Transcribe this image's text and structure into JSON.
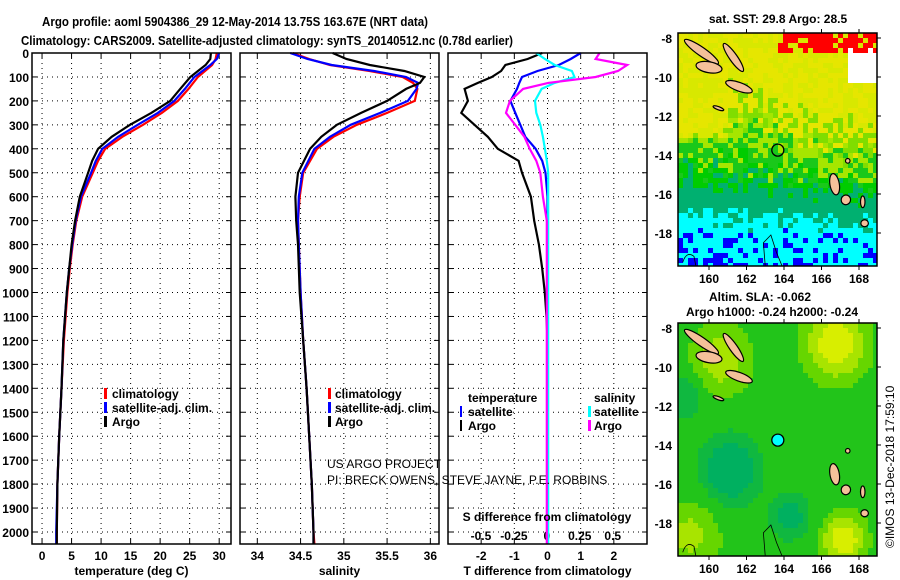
{
  "title": {
    "line1": "Argo profile: aoml 5904386_29 12-May-2014 13.75S 163.67E (NRT data)",
    "line2": "Climatology: CARS2009. Satellite-adjusted climatology: synTS_20140512.nc (0.78d earlier)"
  },
  "colors": {
    "climatology": "#ff0000",
    "satellite": "#0000ff",
    "argo": "#000000",
    "sal_sat": "#00ffff",
    "sal_argo": "#ff00ff"
  },
  "depth_ticks": [
    "0",
    "100",
    "200",
    "300",
    "400",
    "500",
    "600",
    "700",
    "800",
    "900",
    "1000",
    "1100",
    "1200",
    "1300",
    "1400",
    "1500",
    "1600",
    "1700",
    "1800",
    "1900",
    "2000"
  ],
  "chart_data": [
    {
      "type": "line",
      "name": "temperature",
      "xlabel": "temperature (deg C)",
      "ylabel": "depth",
      "xlim": [
        -1.7,
        32
      ],
      "ylim": [
        2050,
        0
      ],
      "xticks": [
        "0",
        "5",
        "10",
        "15",
        "20",
        "25",
        "30"
      ],
      "legend": [
        "climatology",
        "satellite-adj. clim.",
        "Argo"
      ],
      "legend_position": "center",
      "depth": [
        0,
        25,
        50,
        100,
        150,
        200,
        250,
        300,
        350,
        400,
        450,
        500,
        600,
        700,
        800,
        900,
        1000,
        1200,
        1400,
        1600,
        1800,
        2000,
        2050
      ],
      "series": [
        {
          "name": "climatology",
          "values": [
            29.6,
            29.4,
            28.8,
            26.4,
            24.8,
            23.0,
            20.3,
            17.1,
            13.6,
            10.7,
            9.5,
            8.6,
            6.8,
            5.8,
            5.2,
            4.7,
            4.3,
            3.7,
            3.3,
            2.9,
            2.6,
            2.5,
            2.5
          ]
        },
        {
          "name": "satellite-adj. clim.",
          "values": [
            30.0,
            29.6,
            28.5,
            25.8,
            24.2,
            22.4,
            19.6,
            16.2,
            12.9,
            10.2,
            9.1,
            8.3,
            6.6,
            5.7,
            5.1,
            4.6,
            4.2,
            3.6,
            3.3,
            2.9,
            2.6,
            2.4,
            2.4
          ]
        },
        {
          "name": "Argo",
          "values": [
            28.6,
            28.5,
            27.7,
            25.1,
            23.4,
            21.7,
            18.5,
            14.9,
            11.8,
            9.5,
            8.5,
            7.8,
            6.4,
            5.6,
            5.0,
            4.6,
            4.2,
            3.6,
            3.3,
            2.9,
            2.6,
            2.5,
            2.5
          ]
        }
      ]
    },
    {
      "type": "line",
      "name": "salinity",
      "xlabel": "salinity",
      "xlim": [
        33.8,
        36.1
      ],
      "ylim": [
        2050,
        0
      ],
      "xticks": [
        "34",
        "34.5",
        "35",
        "35.5",
        "36"
      ],
      "legend": [
        "climatology",
        "satellite-adj. clim.",
        "Argo"
      ],
      "depth": [
        0,
        25,
        50,
        75,
        100,
        125,
        150,
        200,
        250,
        300,
        350,
        400,
        500,
        600,
        700,
        800,
        1000,
        1200,
        1400,
        1600,
        1800,
        2000,
        2050
      ],
      "series": [
        {
          "name": "climatology",
          "values": [
            34.41,
            34.6,
            34.84,
            35.3,
            35.68,
            35.8,
            35.85,
            35.82,
            35.5,
            35.15,
            34.88,
            34.69,
            34.53,
            34.49,
            34.47,
            34.48,
            34.5,
            34.53,
            34.57,
            34.6,
            34.63,
            34.65,
            34.66
          ]
        },
        {
          "name": "satellite-adj. clim.",
          "values": [
            34.38,
            34.58,
            34.86,
            35.35,
            35.72,
            35.86,
            35.84,
            35.74,
            35.42,
            35.08,
            34.84,
            34.66,
            34.52,
            34.48,
            34.47,
            34.48,
            34.5,
            34.53,
            34.57,
            34.6,
            34.63,
            34.65,
            34.65
          ]
        },
        {
          "name": "Argo",
          "values": [
            34.87,
            35.03,
            35.3,
            35.7,
            35.93,
            35.88,
            35.72,
            35.5,
            35.2,
            34.92,
            34.74,
            34.61,
            34.47,
            34.44,
            34.45,
            34.47,
            34.49,
            34.53,
            34.57,
            34.6,
            34.63,
            34.65,
            34.65
          ]
        }
      ]
    },
    {
      "type": "line",
      "name": "difference",
      "xlabel": "T difference from climatology",
      "x2label": "S difference from climatology",
      "xlim": [
        -3.0,
        3.0
      ],
      "x2lim": [
        -0.75,
        0.76
      ],
      "ylim": [
        2050,
        0
      ],
      "xticks": [
        "-2",
        "-1",
        "0",
        "1",
        "2"
      ],
      "x2ticks": [
        "-0.5",
        "-0.25",
        "0",
        "0.25",
        "0.5"
      ],
      "legend_temperature": {
        "heading": "temperature",
        "items": [
          "satellite",
          "Argo"
        ]
      },
      "legend_salinity": {
        "heading": "salinity",
        "items": [
          "satellite",
          "Argo"
        ]
      },
      "depth": [
        0,
        25,
        50,
        75,
        100,
        125,
        150,
        200,
        250,
        300,
        350,
        400,
        450,
        500,
        600,
        700,
        800,
        900,
        1000,
        1100,
        1200,
        1500,
        2000,
        2050
      ],
      "series": [
        {
          "name": "temperature satellite",
          "axis": "T",
          "values": [
            1.0,
            0.7,
            0.34,
            -0.3,
            -0.77,
            -0.85,
            -0.92,
            -1.12,
            -0.97,
            -0.82,
            -0.67,
            -0.36,
            -0.16,
            -0.06,
            0,
            0,
            0,
            0,
            0,
            0,
            0,
            0,
            0,
            0
          ]
        },
        {
          "name": "temperature Argo",
          "axis": "T",
          "values": [
            -0.16,
            -0.6,
            -1.27,
            -1.4,
            -1.68,
            -2.1,
            -2.5,
            -2.4,
            -2.6,
            -2.2,
            -1.8,
            -1.5,
            -0.87,
            -0.77,
            -0.5,
            -0.4,
            -0.26,
            -0.16,
            -0.08,
            -0.03,
            0,
            0,
            0,
            0
          ]
        },
        {
          "name": "salinity satellite",
          "axis": "S",
          "values": [
            -0.08,
            -0.015,
            0.06,
            0.19,
            0.21,
            0.06,
            -0.04,
            -0.09,
            -0.08,
            -0.05,
            -0.03,
            -0.015,
            0,
            0.01,
            0.01,
            0.01,
            0.01,
            0.01,
            0.01,
            0.01,
            0.01,
            0.01,
            0.01,
            0.01
          ]
        },
        {
          "name": "salinity Argo",
          "axis": "S",
          "values": [
            0.4,
            0.37,
            0.61,
            0.54,
            0.37,
            0.01,
            -0.18,
            -0.28,
            -0.31,
            -0.24,
            -0.17,
            -0.13,
            -0.08,
            -0.05,
            -0.03,
            0,
            0,
            0,
            0,
            0,
            0,
            0,
            0,
            0
          ]
        }
      ]
    }
  ],
  "credits": {
    "line1": "US ARGO PROJECT",
    "line2": "PI: BRECK OWENS, STEVE JAYNE, P.E. ROBBINS"
  },
  "maps": {
    "sst": {
      "title": "sat. SST: 29.8 Argo: 28.5"
    },
    "sla": {
      "title1": "Altim. SLA: -0.062",
      "title2": "Argo h1000: -0.24 h2000: -0.24"
    },
    "lat_ticks": [
      "-8",
      "-10",
      "-12",
      "-14",
      "-16",
      "-18"
    ],
    "lon_ticks": [
      "160",
      "162",
      "164",
      "166",
      "168"
    ],
    "float_position": {
      "lon": 163.67,
      "lat": -13.75
    }
  },
  "footer": "©IMOS 13-Dec-2018 17:59:10"
}
